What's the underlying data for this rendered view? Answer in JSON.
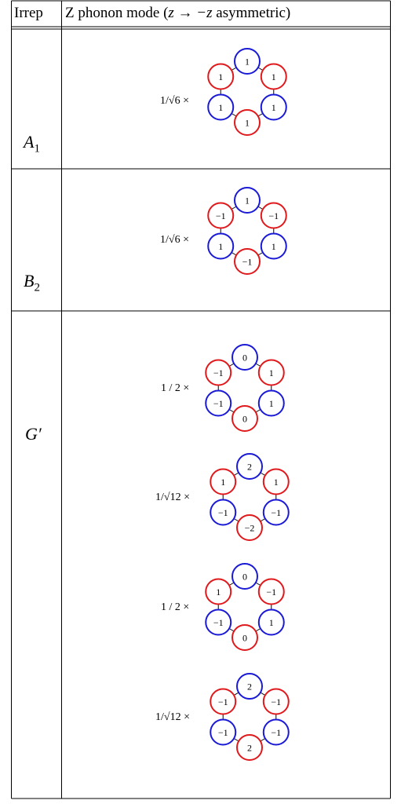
{
  "header": {
    "col1": "Irrep",
    "col2_prefix": "Z phonon mode (",
    "col2_math": "z → −z",
    "col2_suffix": " asymmetric)"
  },
  "colors": {
    "positive": "#e0191c",
    "negative": "#1a1ad6",
    "border": "#000000"
  },
  "rows": [
    {
      "irrep": "A",
      "irrep_sub": "1",
      "modes": [
        {
          "prefactor": "1/√6 ×",
          "values": [
            "1",
            "1",
            "1",
            "1",
            "1",
            "1"
          ]
        }
      ]
    },
    {
      "irrep": "B",
      "irrep_sub": "2",
      "modes": [
        {
          "prefactor": "1/√6 ×",
          "values": [
            "1",
            "−1",
            "1",
            "−1",
            "1",
            "−1"
          ]
        }
      ]
    },
    {
      "irrep": "G′",
      "irrep_sub": "",
      "modes": [
        {
          "prefactor": "1 / 2 ×",
          "values": [
            "0",
            "1",
            "1",
            "0",
            "−1",
            "−1"
          ]
        },
        {
          "prefactor": "1/√12 ×",
          "values": [
            "2",
            "1",
            "−1",
            "−2",
            "−1",
            "1"
          ]
        },
        {
          "prefactor": "1 / 2 ×",
          "values": [
            "0",
            "−1",
            "1",
            "0",
            "−1",
            "1"
          ]
        },
        {
          "prefactor": "1/√12 ×",
          "values": [
            "2",
            "−1",
            "−1",
            "2",
            "−1",
            "−1"
          ]
        }
      ]
    }
  ],
  "ring_colors": [
    "negative",
    "positive",
    "negative",
    "positive",
    "negative",
    "positive"
  ]
}
